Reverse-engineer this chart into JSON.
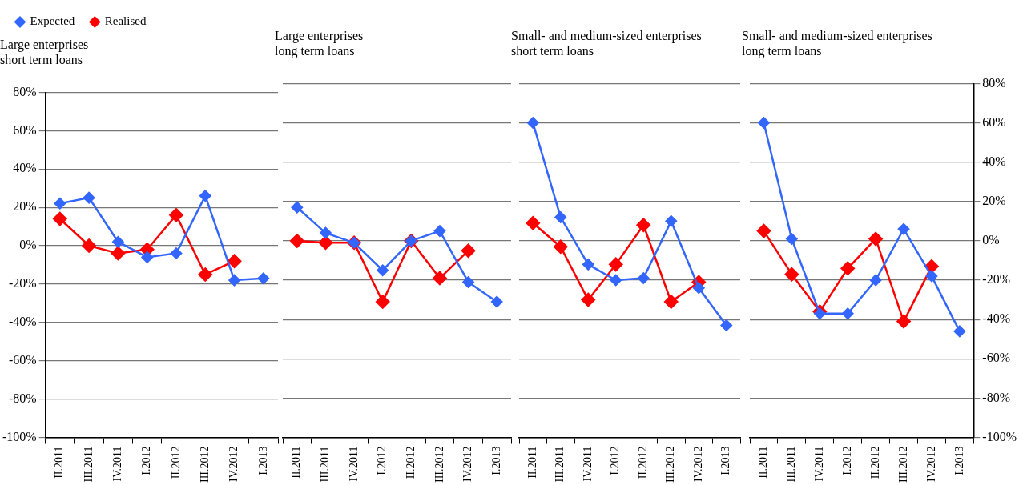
{
  "chart_data": [
    {
      "type": "line",
      "title": "Large enterprises\nshort term loans",
      "categories": [
        "II.2011",
        "III.2011",
        "IV.2011",
        "I.2012",
        "II.2012",
        "III.2012",
        "IV.2012",
        "I.2013"
      ],
      "series": [
        {
          "name": "Realised",
          "color": "#ff0000",
          "values": [
            14,
            0,
            -4,
            -2,
            16,
            -15,
            -8,
            null
          ]
        },
        {
          "name": "Expected",
          "color": "#3366ff",
          "values": [
            22,
            25,
            2,
            -6,
            -4,
            26,
            -18,
            -17
          ]
        }
      ],
      "ylim": [
        -100,
        80
      ],
      "yticks": [
        {
          "value": -100,
          "label": "-100%"
        },
        {
          "value": -80,
          "label": "-80%"
        },
        {
          "value": -60,
          "label": "-60%"
        },
        {
          "value": -40,
          "label": "-40%"
        },
        {
          "value": -20,
          "label": "-20%"
        },
        {
          "value": 0,
          "label": "0%"
        },
        {
          "value": 20,
          "label": "20%"
        },
        {
          "value": 40,
          "label": "40%"
        },
        {
          "value": 60,
          "label": "60%"
        },
        {
          "value": 80,
          "label": "80%"
        }
      ],
      "grid": "y",
      "legend": "top left",
      "marker": "diamond"
    },
    {
      "type": "line",
      "title": "Large enterprises\nlong term loans",
      "categories": [
        "II.2011",
        "III.2011",
        "IV.2011",
        "I.2012",
        "II.2012",
        "III.2012",
        "IV.2012",
        "I.2013"
      ],
      "series": [
        {
          "color": "#ff0000",
          "values": [
            0,
            -1,
            -1,
            -31,
            0,
            -19,
            -5,
            null
          ]
        },
        {
          "color": "#3366ff",
          "values": [
            17,
            4,
            -1,
            -15,
            0,
            5,
            -21,
            -31
          ]
        }
      ],
      "ylim": [
        -100,
        80
      ],
      "yticks": [
        -100,
        -80,
        -60,
        -40,
        -20,
        0,
        20,
        40,
        60,
        80
      ],
      "grid": "y",
      "tick_labels": "x",
      "marker": "diamond"
    },
    {
      "type": "line",
      "title": "Small- and medium-sized enterprises\nshort term loans",
      "categories": [
        "II.2011",
        "III.2011",
        "IV.2011",
        "I.2012",
        "II.2012",
        "III.2012",
        "IV.2012",
        "I.2013"
      ],
      "series": [
        {
          "color": "#ff0000",
          "values": [
            9,
            -3,
            -30,
            -12,
            8,
            -31,
            -21,
            null
          ]
        },
        {
          "color": "#3366ff",
          "values": [
            60,
            12,
            -12,
            -20,
            -19,
            10,
            -24,
            -43
          ]
        }
      ],
      "ylim": [
        -100,
        80
      ],
      "yticks": [
        -100,
        -80,
        -60,
        -40,
        -20,
        0,
        20,
        40,
        60,
        80
      ],
      "grid": "y",
      "tick_labels": "x",
      "marker": "diamond"
    },
    {
      "type": "line",
      "title": "Small- and medium-sized enterprises\nlong term loans",
      "categories": [
        "II.2011",
        "III.2011",
        "IV.2011",
        "I.2012",
        "II.2012",
        "III.2012",
        "IV.2012",
        "I.2013"
      ],
      "series": [
        {
          "color": "#ff0000",
          "values": [
            5,
            -17,
            -36,
            -14,
            1,
            -41,
            -13,
            null
          ]
        },
        {
          "color": "#3366ff",
          "values": [
            60,
            1,
            -37,
            -37,
            -20,
            6,
            -18,
            -46
          ]
        }
      ],
      "ylim": [
        -100,
        80
      ],
      "yticks": [
        {
          "value": -100,
          "label": "-100%"
        },
        {
          "value": -80,
          "label": "-80%"
        },
        {
          "value": -60,
          "label": "-60%"
        },
        {
          "value": -40,
          "label": "-40%"
        },
        {
          "value": -20,
          "label": "-20%"
        },
        {
          "value": 0,
          "label": "0%"
        },
        {
          "value": 20,
          "label": "20%"
        },
        {
          "value": 40,
          "label": "40%"
        },
        {
          "value": 60,
          "label": "60%"
        },
        {
          "value": 80,
          "label": "80%"
        }
      ],
      "grid": "y",
      "marker": "diamond"
    }
  ]
}
